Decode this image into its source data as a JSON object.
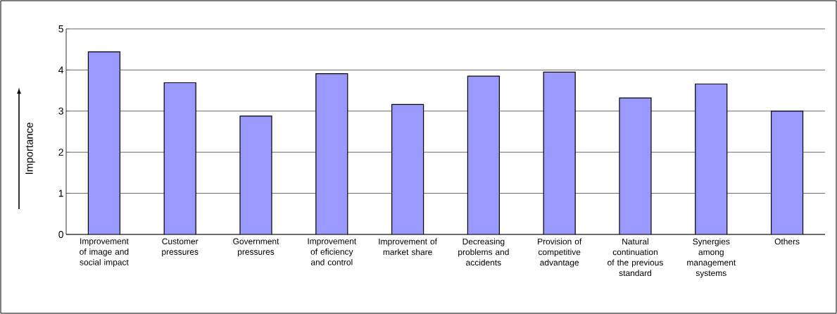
{
  "chart_data": {
    "type": "bar",
    "ylabel": "Importance",
    "categories": [
      "Improvement of image and social impact",
      "Customer pressures",
      "Government pressures",
      "Improvement of eficiency and control",
      "Improvement of market share",
      "Decreasing problems and accidents",
      "Provision of competitive advantage",
      "Natural continuation of the previous standard",
      "Synergies among management systems",
      "Others"
    ],
    "values": [
      4.44,
      3.69,
      2.88,
      3.91,
      3.16,
      3.85,
      3.95,
      3.32,
      3.66,
      3.0
    ],
    "color": "#9999ff",
    "ylim": [
      0,
      5
    ],
    "yticks": [
      0,
      1,
      2,
      3,
      4,
      5
    ],
    "grid": "y"
  }
}
